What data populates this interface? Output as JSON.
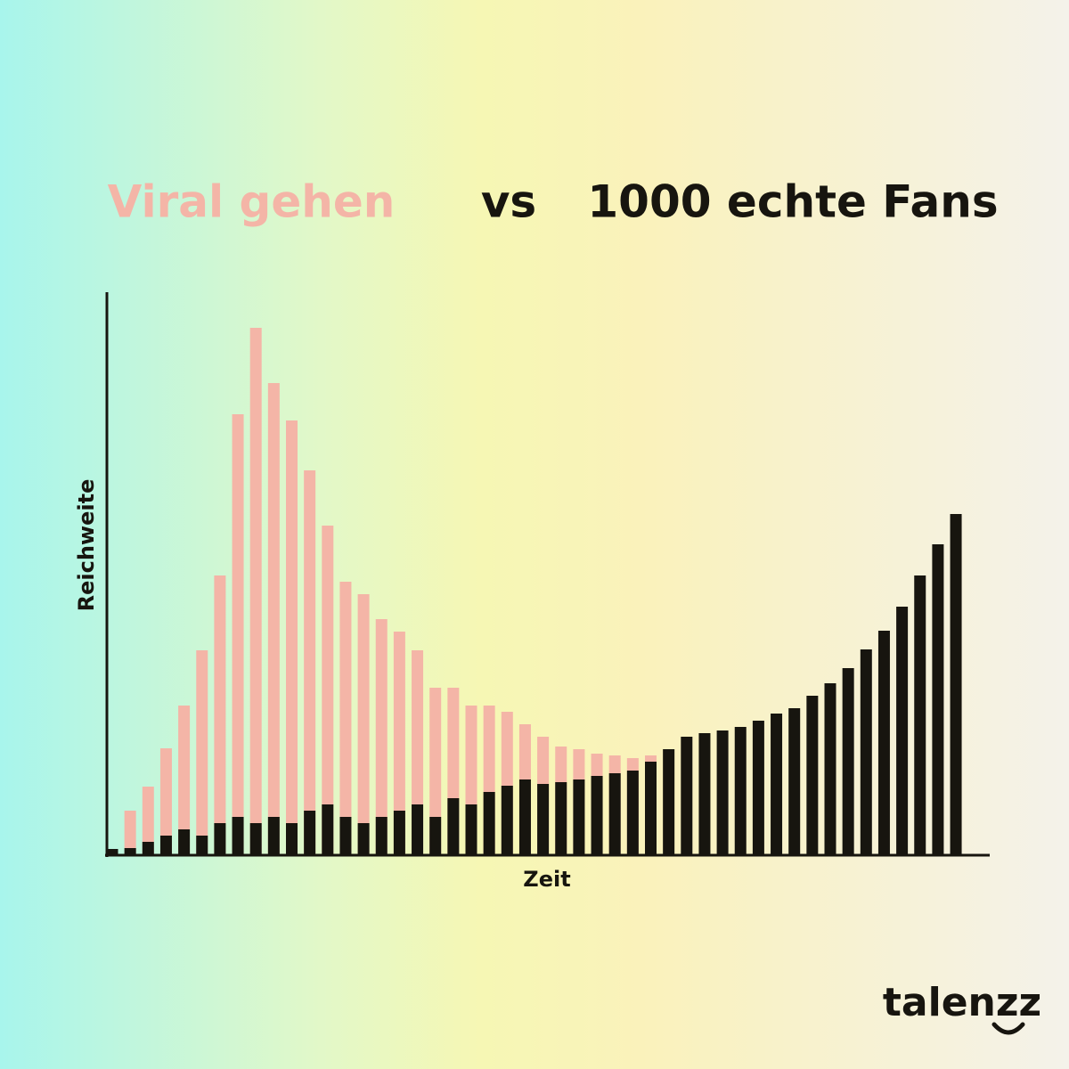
{
  "chart_data": {
    "type": "bar",
    "overlap": true,
    "title": "vs",
    "y_label": "Reichweite",
    "x_label": "Zeit",
    "brand": "talenzz",
    "ylim": [
      0,
      630
    ],
    "series": [
      {
        "name": "Viral gehen",
        "color": "#f4b5a7",
        "values": [
          null,
          50,
          77,
          120,
          168,
          230,
          314,
          495,
          592,
          530,
          488,
          432,
          370,
          307,
          293,
          265,
          251,
          230,
          188,
          188,
          168,
          168,
          161,
          147,
          133,
          122,
          119,
          114,
          112,
          109,
          112,
          null,
          null,
          null,
          null,
          null,
          null,
          null,
          null,
          null,
          null,
          null,
          null,
          null,
          null,
          null,
          null,
          null
        ]
      },
      {
        "name": "1000 echte Fans",
        "color": "#17150f",
        "values": [
          7,
          8,
          15,
          22,
          29,
          22,
          36,
          43,
          36,
          43,
          36,
          50,
          57,
          43,
          36,
          43,
          50,
          57,
          43,
          64,
          57,
          71,
          78,
          85,
          80,
          82,
          85,
          89,
          92,
          95,
          105,
          119,
          133,
          137,
          140,
          144,
          151,
          159,
          165,
          179,
          193,
          210,
          231,
          252,
          279,
          314,
          349,
          383
        ]
      }
    ]
  }
}
